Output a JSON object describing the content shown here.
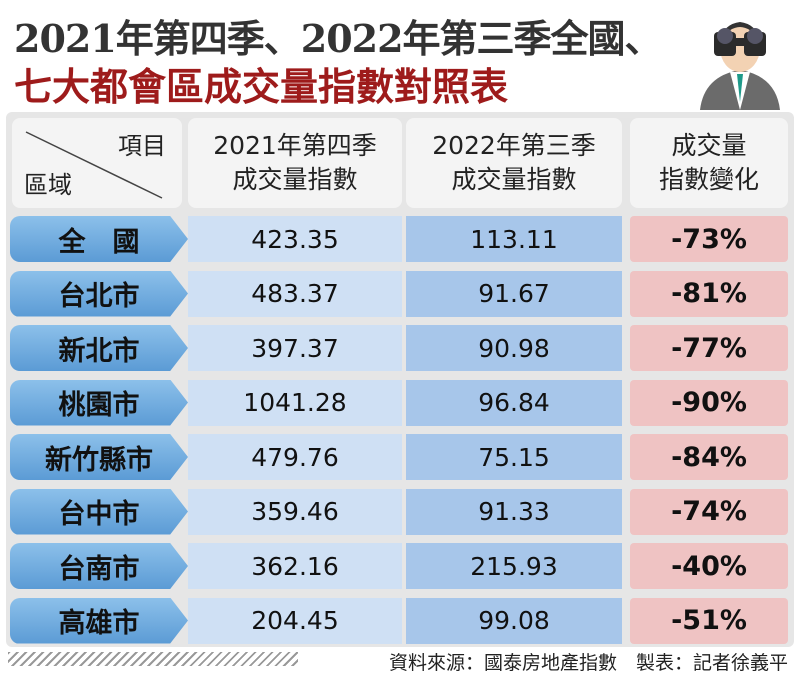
{
  "title": {
    "line1": "2021年第四季、2022年第三季全國、",
    "line2": "七大都會區成交量指數對照表"
  },
  "table": {
    "corner": {
      "top": "項目",
      "bottom": "區域"
    },
    "headers": [
      [
        "2021年第四季",
        "成交量指數"
      ],
      [
        "2022年第三季",
        "成交量指數"
      ],
      [
        "成交量",
        "指數變化"
      ]
    ],
    "rows": [
      [
        "全　國",
        "423.35",
        "113.11",
        "-73%"
      ],
      [
        "台北市",
        "483.37",
        "91.67",
        "-81%"
      ],
      [
        "新北市",
        "397.37",
        "90.98",
        "-77%"
      ],
      [
        "桃園市",
        "1041.28",
        "96.84",
        "-90%"
      ],
      [
        "新竹縣市",
        "479.76",
        "75.15",
        "-84%"
      ],
      [
        "台中市",
        "359.46",
        "91.33",
        "-74%"
      ],
      [
        "台南市",
        "362.16",
        "215.93",
        "-40%"
      ],
      [
        "高雄市",
        "204.45",
        "99.08",
        "-51%"
      ]
    ]
  },
  "footer": "資料來源：國泰房地產指數　製表：記者徐義平"
}
